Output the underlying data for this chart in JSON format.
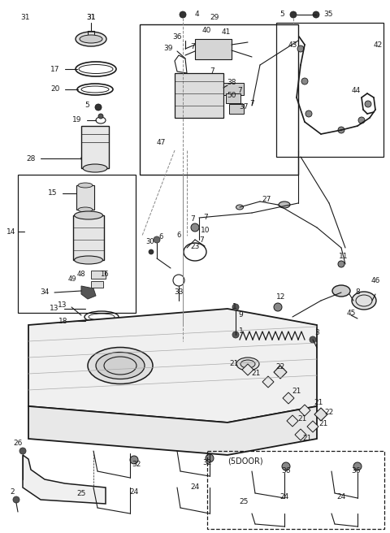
{
  "bg_color": "#ffffff",
  "lc": "#1a1a1a",
  "fs": 6.5,
  "figsize": [
    4.8,
    6.56
  ],
  "dpi": 100
}
